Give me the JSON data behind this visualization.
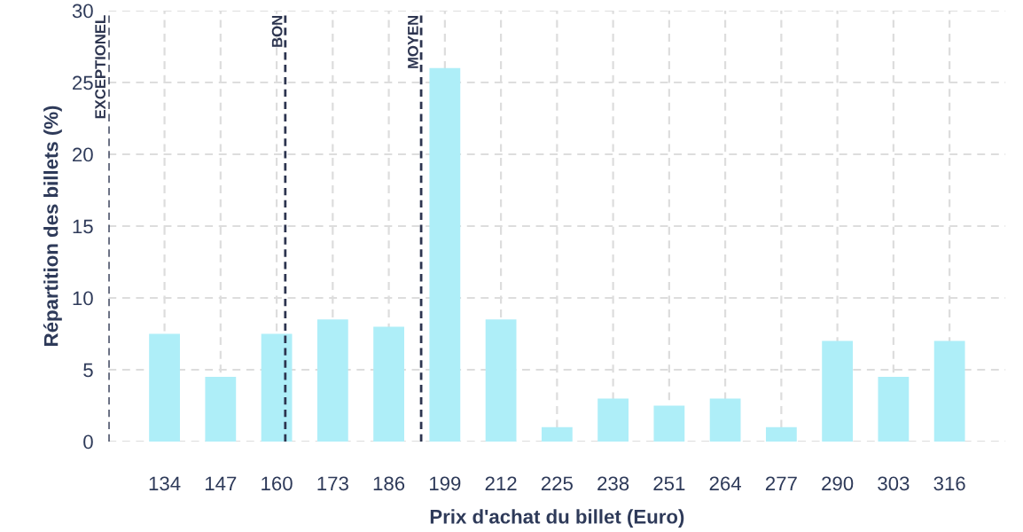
{
  "chart_data": {
    "type": "bar",
    "xlabel": "Prix d'achat du billet (Euro)",
    "ylabel": "Répartition des billets (%)",
    "x": [
      134,
      147,
      160,
      173,
      186,
      199,
      212,
      225,
      238,
      251,
      264,
      277,
      290,
      303,
      316
    ],
    "values": [
      7.5,
      4.5,
      7.5,
      8.5,
      8,
      26,
      8.5,
      1,
      3,
      2.5,
      3,
      1,
      7,
      4.5,
      7
    ],
    "color": "#aeeef8",
    "xlim": [
      121,
      329
    ],
    "xticks": [
      134,
      147,
      160,
      173,
      186,
      199,
      212,
      225,
      238,
      251,
      264,
      277,
      290,
      303,
      316
    ],
    "ylim": [
      0,
      30
    ],
    "yticks": [
      0,
      5,
      10,
      15,
      20,
      25,
      30
    ],
    "ref_lines": [
      {
        "axis": "x",
        "value": 121,
        "label": "EXCEPTIONEL",
        "color": "#2d3550",
        "line_style": "dashed"
      },
      {
        "axis": "x",
        "value": 162,
        "label": "BON",
        "color": "#2d3550",
        "line_style": "dashed"
      },
      {
        "axis": "x",
        "value": 193.5,
        "label": "MOYEN",
        "color": "#2d3550",
        "line_style": "dashed"
      }
    ],
    "grid": true
  }
}
